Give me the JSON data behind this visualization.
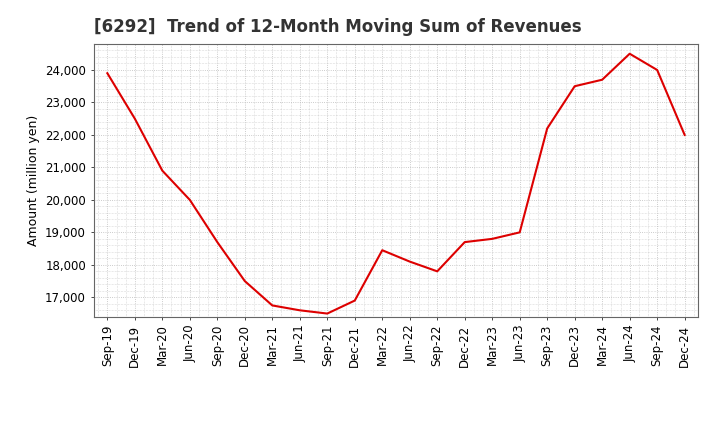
{
  "title": "[6292]  Trend of 12-Month Moving Sum of Revenues",
  "ylabel": "Amount (million yen)",
  "line_color": "#dd0000",
  "background_color": "#ffffff",
  "plot_background_color": "#ffffff",
  "grid_color": "#bbbbbb",
  "x_labels": [
    "Sep-19",
    "Dec-19",
    "Mar-20",
    "Jun-20",
    "Sep-20",
    "Dec-20",
    "Mar-21",
    "Jun-21",
    "Sep-21",
    "Dec-21",
    "Mar-22",
    "Jun-22",
    "Sep-22",
    "Dec-22",
    "Mar-23",
    "Jun-23",
    "Sep-23",
    "Dec-23",
    "Mar-24",
    "Jun-24",
    "Sep-24",
    "Dec-24"
  ],
  "values": [
    23900,
    22500,
    20900,
    20000,
    18700,
    17500,
    16750,
    16600,
    16500,
    16900,
    18450,
    18100,
    17800,
    18700,
    18800,
    19000,
    22200,
    23500,
    23700,
    24500,
    24000,
    22000
  ],
  "ylim_min": 16400,
  "ylim_max": 24800,
  "yticks": [
    17000,
    18000,
    19000,
    20000,
    21000,
    22000,
    23000,
    24000
  ],
  "title_fontsize": 12,
  "label_fontsize": 9,
  "tick_fontsize": 8.5
}
